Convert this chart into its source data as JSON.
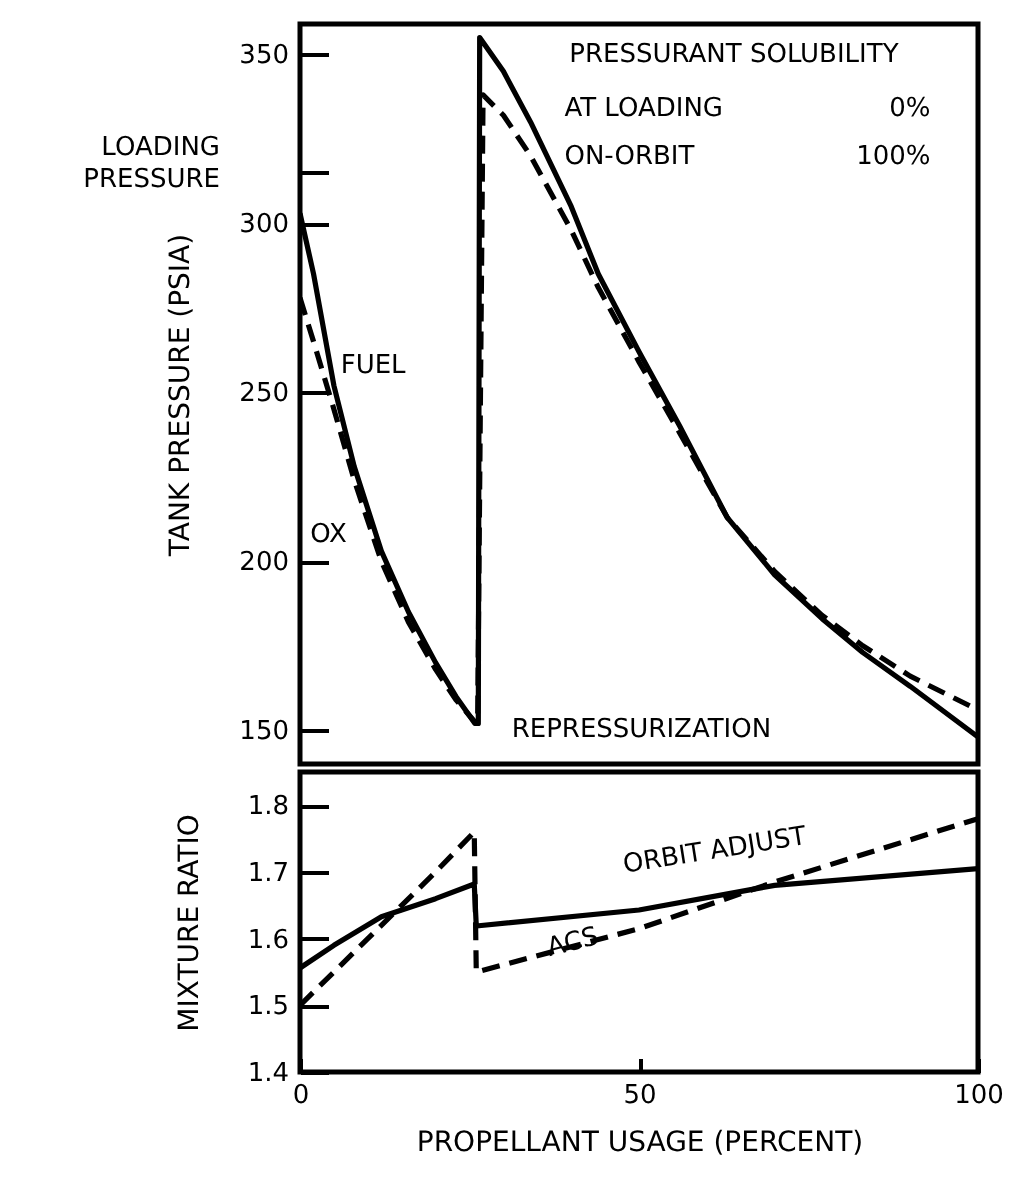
{
  "chart_data": [
    {
      "type": "line",
      "ylabel": "TANK PRESSURE (PSIA)",
      "xlim": [
        0,
        100
      ],
      "ylim": [
        140,
        359
      ],
      "yticks": [
        150,
        200,
        250,
        300,
        {
          "value": 315,
          "label": null
        },
        350
      ],
      "tick_labels": "y",
      "series": [
        {
          "name": "FUEL",
          "color": "#000000",
          "line_style": "solid",
          "x": [
            0,
            2,
            5,
            8,
            12,
            16,
            20,
            23,
            25.8,
            26.3,
            26.5,
            30,
            34,
            40,
            44,
            50,
            56,
            63,
            70,
            77,
            83,
            90,
            100
          ],
          "values": [
            303,
            285,
            252,
            228,
            203,
            185,
            170,
            160,
            152,
            152,
            355,
            345,
            330,
            305,
            285,
            262,
            240,
            213,
            196,
            183,
            173,
            163,
            148
          ]
        },
        {
          "name": "OX",
          "color": "#000000",
          "line_style": "dashed",
          "x": [
            0,
            2,
            5,
            8,
            12,
            16,
            20,
            23,
            26,
            26.2,
            27,
            30,
            34,
            40,
            44,
            50,
            56,
            63,
            70,
            77,
            83,
            90,
            100
          ],
          "values": [
            278,
            265,
            245,
            224,
            200,
            182,
            168,
            159,
            152,
            152,
            338,
            332,
            320,
            298,
            281,
            259,
            238,
            213,
            197,
            184,
            175,
            166,
            156
          ]
        }
      ],
      "annotations": [
        "LOADING PRESSURE",
        "PRESSURANT SOLUBILITY",
        "AT LOADING",
        "0%",
        "ON-ORBIT",
        "100%",
        {
          "text": "REPRESSURIZATION",
          "x": 26.5,
          "y": 152
        }
      ]
    },
    {
      "type": "line",
      "ylabel": "MIXTURE RATIO",
      "xlabel": "PROPELLANT USAGE (PERCENT)",
      "xlim": [
        0,
        100
      ],
      "xticks": [
        0,
        50,
        100
      ],
      "ylim": [
        1.4,
        1.85
      ],
      "yticks": [
        1.4,
        1.5,
        1.6,
        1.7,
        1.8
      ],
      "series": [
        {
          "name": "ORBIT ADJUST",
          "color": "#000000",
          "line_style": "solid",
          "x": [
            0,
            5,
            12,
            20,
            25.7,
            26,
            50,
            70,
            100
          ],
          "values": [
            1.556,
            1.59,
            1.633,
            1.66,
            1.682,
            1.619,
            1.643,
            1.68,
            1.705
          ]
        },
        {
          "name": "ACS",
          "color": "#000000",
          "line_style": "dashed",
          "x": [
            0,
            5,
            10,
            15,
            20,
            25.7,
            26,
            50,
            70,
            100
          ],
          "values": [
            1.5,
            1.55,
            1.6,
            1.65,
            1.7,
            1.76,
            1.55,
            1.615,
            1.685,
            1.78
          ]
        }
      ]
    }
  ]
}
